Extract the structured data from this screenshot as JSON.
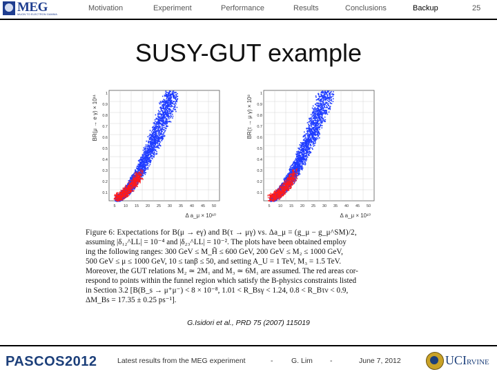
{
  "header": {
    "nav": [
      "Motivation",
      "Experiment",
      "Performance",
      "Results",
      "Conclusions",
      "Backup"
    ],
    "active": "Backup",
    "page_number": "25",
    "logo_text": "MEG",
    "logo_subtext": "MUON TO ELECTRON GAMMA"
  },
  "slide": {
    "title": "SUSY-GUT example",
    "citation": "G.Isidori et al., PRD 75 (2007) 115019"
  },
  "plots": [
    {
      "ylabel": "BR(μ → e γ) × 10¹¹",
      "xlabel": "Δ a_μ × 10¹⁰",
      "xticks": [
        "5",
        "10",
        "15",
        "20",
        "25",
        "30",
        "35",
        "40",
        "45",
        "50"
      ],
      "yticks": [
        "1",
        "0.9",
        "0.8",
        "0.7",
        "0.6",
        "0.5",
        "0.4",
        "0.3",
        "0.2",
        "0.1"
      ]
    },
    {
      "ylabel": "BR(τ → μ γ) × 10⁸",
      "xlabel": "Δ a_μ × 10¹⁰",
      "xticks": [
        "5",
        "10",
        "15",
        "20",
        "25",
        "30",
        "35",
        "40",
        "45",
        "50"
      ],
      "yticks": [
        "1",
        "0.9",
        "0.8",
        "0.7",
        "0.6",
        "0.5",
        "0.4",
        "0.3",
        "0.2",
        "0.1"
      ]
    }
  ],
  "colors": {
    "blue": "#1f3cff",
    "red": "#ff1a1a",
    "brand": "#1c3f7a"
  },
  "caption_lines": [
    "Figure 6:  Expectations for B(μ → eγ) and B(τ → μγ) vs. Δa_μ = (g_μ − g_μ^SM)/2,",
    "assuming |δ₁₂^LL| = 10⁻⁴ and |δ₂₃^LL| = 10⁻². The plots have been obtained employ",
    "ing the following ranges: 300 GeV ≤ M_H̃ ≤ 600 GeV, 200 GeV ≤ M₂ ≤ 1000 GeV,",
    "500 GeV ≤ μ ≤ 1000 GeV, 10 ≤ tanβ ≤ 50, and setting A_U = 1 TeV, M₃ = 1.5 TeV.",
    "Moreover, the GUT relations M₂ ≃ 2M₁ and M₃ ≃ 6M₁ are assumed. The red areas cor-",
    "respond to points within the funnel region which satisfy the B-physics constraints listed",
    "in Section 3.2 [B(B_s → μ⁺μ⁻) < 8 × 10⁻⁸, 1.01 < R_Bsγ < 1.24, 0.8 < R_Bτν < 0.9,",
    "ΔM_Bs = 17.35 ± 0.25 ps⁻¹]."
  ],
  "footer": {
    "conference": "PASCOS",
    "year": "2012",
    "talk": "Latest results from the MEG experiment",
    "sep1": "-",
    "author": "G. Lim",
    "sep2": "-",
    "date": "June 7, 2012",
    "institution": "UCI",
    "institution_suffix": "RVINE"
  }
}
